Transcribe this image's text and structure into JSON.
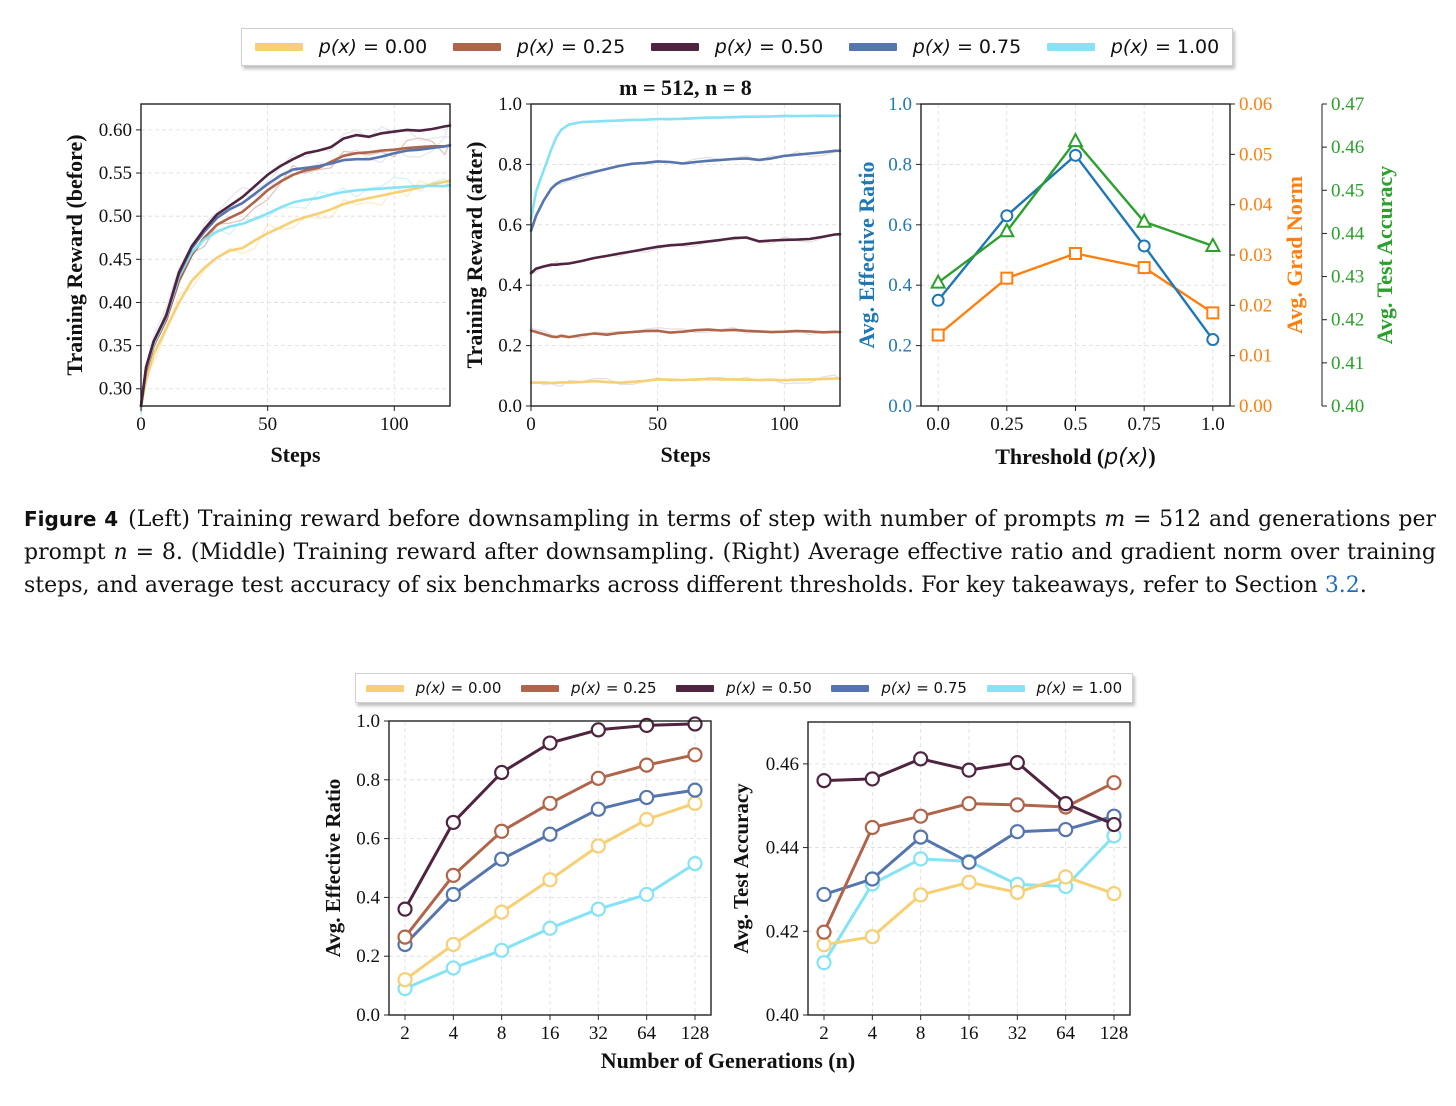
{
  "legend": {
    "entries": [
      {
        "label_prefix": "p(x)",
        "label_value": " = 0.00",
        "color": "#f7cf74"
      },
      {
        "label_prefix": "p(x)",
        "label_value": " = 0.25",
        "color": "#b0654a"
      },
      {
        "label_prefix": "p(x)",
        "label_value": " = 0.50",
        "color": "#4e2440"
      },
      {
        "label_prefix": "p(x)",
        "label_value": " = 0.75",
        "color": "#5575ae"
      },
      {
        "label_prefix": "p(x)",
        "label_value": " = 1.00",
        "color": "#86e2f5"
      }
    ]
  },
  "caption": {
    "figure_label": "Figure 4",
    "part1": "(Left) Training reward before downsampling in terms of step with number of prompts ",
    "m_var": "m",
    "part2": " = 512 and generations per prompt ",
    "n_var": "n",
    "part3": " = 8. (Middle) Training reward after downsampling. (Right) Average effective ratio and gradient norm over training steps, and average test accuracy of six benchmarks across different thresholds. For key takeaways, refer to Section ",
    "section_ref": "3.2",
    "part4": "."
  },
  "chart_data": [
    {
      "id": "training-reward-before",
      "type": "line",
      "title": "",
      "xlabel": "Steps",
      "ylabel": "Training Reward (before)",
      "xlim": [
        0,
        122
      ],
      "ylim": [
        0.28,
        0.63
      ],
      "xticks": [
        0,
        50,
        100
      ],
      "yticks": [
        0.3,
        0.35,
        0.4,
        0.45,
        0.5,
        0.55,
        0.6
      ],
      "ytick_labels": [
        "0.30",
        "0.35",
        "0.40",
        "0.45",
        "0.50",
        "0.55",
        "0.60"
      ],
      "grid": true,
      "x": [
        0,
        2,
        5,
        10,
        15,
        20,
        25,
        30,
        35,
        40,
        45,
        50,
        55,
        60,
        65,
        70,
        75,
        80,
        85,
        90,
        95,
        100,
        105,
        110,
        115,
        120,
        122
      ],
      "series": [
        {
          "name": "p(x) = 0.00",
          "values": [
            0.28,
            0.31,
            0.34,
            0.37,
            0.4,
            0.425,
            0.44,
            0.452,
            0.46,
            0.463,
            0.472,
            0.48,
            0.487,
            0.494,
            0.499,
            0.503,
            0.508,
            0.514,
            0.518,
            0.521,
            0.524,
            0.527,
            0.53,
            0.533,
            0.537,
            0.54,
            0.541
          ]
        },
        {
          "name": "p(x) = 0.25",
          "values": [
            0.28,
            0.32,
            0.35,
            0.38,
            0.425,
            0.455,
            0.475,
            0.49,
            0.498,
            0.505,
            0.517,
            0.53,
            0.54,
            0.548,
            0.553,
            0.556,
            0.563,
            0.57,
            0.573,
            0.574,
            0.576,
            0.577,
            0.579,
            0.58,
            0.581,
            0.581,
            0.582
          ]
        },
        {
          "name": "p(x) = 0.50",
          "values": [
            0.28,
            0.325,
            0.355,
            0.385,
            0.435,
            0.465,
            0.485,
            0.502,
            0.512,
            0.522,
            0.535,
            0.548,
            0.558,
            0.566,
            0.573,
            0.576,
            0.58,
            0.59,
            0.594,
            0.592,
            0.596,
            0.598,
            0.6,
            0.599,
            0.601,
            0.604,
            0.605
          ]
        },
        {
          "name": "p(x) = 0.75",
          "values": [
            0.28,
            0.325,
            0.355,
            0.385,
            0.433,
            0.463,
            0.482,
            0.498,
            0.508,
            0.515,
            0.526,
            0.537,
            0.547,
            0.554,
            0.556,
            0.558,
            0.561,
            0.565,
            0.566,
            0.566,
            0.569,
            0.573,
            0.576,
            0.577,
            0.579,
            0.581,
            0.582
          ]
        },
        {
          "name": "p(x) = 1.00",
          "values": [
            0.28,
            0.323,
            0.352,
            0.383,
            0.43,
            0.458,
            0.473,
            0.482,
            0.488,
            0.491,
            0.497,
            0.503,
            0.51,
            0.516,
            0.519,
            0.521,
            0.525,
            0.528,
            0.53,
            0.531,
            0.532,
            0.533,
            0.534,
            0.535,
            0.535,
            0.535,
            0.536
          ]
        }
      ]
    },
    {
      "id": "training-reward-after",
      "type": "line",
      "title": "m = 512, n = 8",
      "xlabel": "Steps",
      "ylabel": "Training Reward (after)",
      "xlim": [
        0,
        122
      ],
      "ylim": [
        0.0,
        1.0
      ],
      "xticks": [
        0,
        50,
        100
      ],
      "yticks": [
        0.0,
        0.2,
        0.4,
        0.6,
        0.8,
        1.0
      ],
      "ytick_labels": [
        "0.0",
        "0.2",
        "0.4",
        "0.6",
        "0.8",
        "1.0"
      ],
      "grid": true,
      "x": [
        0,
        2,
        5,
        8,
        10,
        12,
        15,
        20,
        25,
        30,
        35,
        40,
        45,
        50,
        55,
        60,
        65,
        70,
        75,
        80,
        85,
        90,
        95,
        100,
        105,
        110,
        115,
        120,
        122
      ],
      "series": [
        {
          "name": "p(x) = 0.00",
          "values": [
            0.078,
            0.077,
            0.078,
            0.076,
            0.077,
            0.078,
            0.078,
            0.079,
            0.082,
            0.079,
            0.077,
            0.08,
            0.083,
            0.088,
            0.087,
            0.086,
            0.088,
            0.089,
            0.088,
            0.088,
            0.087,
            0.086,
            0.087,
            0.085,
            0.087,
            0.088,
            0.089,
            0.091,
            0.091
          ]
        },
        {
          "name": "p(x) = 0.25",
          "values": [
            0.25,
            0.245,
            0.238,
            0.23,
            0.228,
            0.232,
            0.228,
            0.235,
            0.24,
            0.236,
            0.242,
            0.245,
            0.248,
            0.249,
            0.243,
            0.246,
            0.251,
            0.253,
            0.25,
            0.252,
            0.249,
            0.247,
            0.245,
            0.246,
            0.248,
            0.247,
            0.244,
            0.245,
            0.245
          ]
        },
        {
          "name": "p(x) = 0.50",
          "values": [
            0.44,
            0.455,
            0.462,
            0.468,
            0.468,
            0.47,
            0.472,
            0.48,
            0.49,
            0.497,
            0.505,
            0.512,
            0.52,
            0.527,
            0.532,
            0.535,
            0.54,
            0.545,
            0.55,
            0.556,
            0.558,
            0.545,
            0.548,
            0.55,
            0.551,
            0.553,
            0.56,
            0.568,
            0.569
          ]
        },
        {
          "name": "p(x) = 0.75",
          "values": [
            0.58,
            0.63,
            0.68,
            0.72,
            0.735,
            0.745,
            0.752,
            0.765,
            0.775,
            0.785,
            0.795,
            0.802,
            0.805,
            0.81,
            0.808,
            0.803,
            0.808,
            0.812,
            0.815,
            0.818,
            0.82,
            0.815,
            0.82,
            0.828,
            0.832,
            0.836,
            0.84,
            0.845,
            0.845
          ]
        },
        {
          "name": "p(x) = 1.00",
          "values": [
            0.62,
            0.71,
            0.78,
            0.85,
            0.89,
            0.915,
            0.932,
            0.94,
            0.942,
            0.944,
            0.945,
            0.947,
            0.948,
            0.95,
            0.95,
            0.951,
            0.953,
            0.955,
            0.955,
            0.957,
            0.958,
            0.958,
            0.959,
            0.96,
            0.96,
            0.961,
            0.961,
            0.961,
            0.961
          ]
        }
      ]
    },
    {
      "id": "threshold-metrics",
      "type": "line",
      "title": "",
      "xlabel": "Threshold (p(x))",
      "x": [
        0.0,
        0.25,
        0.5,
        0.75,
        1.0
      ],
      "xtick_labels": [
        "0.0",
        "0.25",
        "0.5",
        "0.75",
        "1.0"
      ],
      "grid": true,
      "axes": [
        {
          "name": "Avg. Effective Ratio",
          "color": "#1f77b4",
          "ylim": [
            0.0,
            1.0
          ],
          "yticks": [
            0.0,
            0.2,
            0.4,
            0.6,
            0.8,
            1.0
          ],
          "ytick_labels": [
            "0.0",
            "0.2",
            "0.4",
            "0.6",
            "0.8",
            "1.0"
          ],
          "marker": "circle",
          "values": [
            0.35,
            0.63,
            0.83,
            0.53,
            0.22
          ]
        },
        {
          "name": "Avg. Grad Norm",
          "color": "#ff7f0e",
          "ylim": [
            0.0,
            0.06
          ],
          "yticks": [
            0.0,
            0.01,
            0.02,
            0.03,
            0.04,
            0.05,
            0.06
          ],
          "ytick_labels": [
            "0.00",
            "0.01",
            "0.02",
            "0.03",
            "0.04",
            "0.05",
            "0.06"
          ],
          "marker": "square",
          "values": [
            0.0141,
            0.0254,
            0.0303,
            0.0275,
            0.0185
          ]
        },
        {
          "name": "Avg. Test Accuracy",
          "color": "#2ca02c",
          "ylim": [
            0.4,
            0.47
          ],
          "yticks": [
            0.4,
            0.41,
            0.42,
            0.43,
            0.44,
            0.45,
            0.46,
            0.47
          ],
          "ytick_labels": [
            "0.40",
            "0.41",
            "0.42",
            "0.43",
            "0.44",
            "0.45",
            "0.46",
            "0.47"
          ],
          "marker": "triangle",
          "values": [
            0.4286,
            0.4405,
            0.4614,
            0.4427,
            0.4371
          ]
        }
      ]
    },
    {
      "id": "effective-ratio-vs-generations",
      "type": "line",
      "title": "",
      "xlabel": "Number of Generations (n)",
      "ylabel": "Avg. Effective Ratio",
      "categories": [
        "2",
        "4",
        "8",
        "16",
        "32",
        "64",
        "128"
      ],
      "ylim": [
        0.0,
        1.0
      ],
      "yticks": [
        0.0,
        0.2,
        0.4,
        0.6,
        0.8,
        1.0
      ],
      "ytick_labels": [
        "0.0",
        "0.2",
        "0.4",
        "0.6",
        "0.8",
        "1.0"
      ],
      "grid": true,
      "series": [
        {
          "name": "p(x) = 0.00",
          "values": [
            0.12,
            0.24,
            0.35,
            0.46,
            0.575,
            0.665,
            0.72
          ]
        },
        {
          "name": "p(x) = 0.25",
          "values": [
            0.265,
            0.475,
            0.625,
            0.72,
            0.805,
            0.85,
            0.885
          ]
        },
        {
          "name": "p(x) = 0.50",
          "values": [
            0.36,
            0.655,
            0.825,
            0.925,
            0.97,
            0.985,
            0.99
          ]
        },
        {
          "name": "p(x) = 0.75",
          "values": [
            0.24,
            0.41,
            0.53,
            0.615,
            0.7,
            0.74,
            0.765
          ]
        },
        {
          "name": "p(x) = 1.00",
          "values": [
            0.09,
            0.16,
            0.22,
            0.295,
            0.36,
            0.41,
            0.515
          ]
        }
      ]
    },
    {
      "id": "test-accuracy-vs-generations",
      "type": "line",
      "title": "",
      "xlabel": "Number of Generations (n)",
      "ylabel": "Avg. Test Accuracy",
      "categories": [
        "2",
        "4",
        "8",
        "16",
        "32",
        "64",
        "128"
      ],
      "ylim": [
        0.4,
        0.47
      ],
      "yticks": [
        0.4,
        0.42,
        0.44,
        0.46
      ],
      "ytick_labels": [
        "0.40",
        "0.42",
        "0.44",
        "0.46"
      ],
      "grid": true,
      "series": [
        {
          "name": "p(x) = 0.00",
          "values": [
            0.4168,
            0.4187,
            0.4287,
            0.4317,
            0.4293,
            0.433,
            0.429
          ]
        },
        {
          "name": "p(x) = 0.25",
          "values": [
            0.4198,
            0.4448,
            0.4475,
            0.4505,
            0.4502,
            0.4497,
            0.4555
          ]
        },
        {
          "name": "p(x) = 0.50",
          "values": [
            0.456,
            0.4564,
            0.4612,
            0.4585,
            0.4603,
            0.4505,
            0.4455
          ]
        },
        {
          "name": "p(x) = 0.75",
          "values": [
            0.4288,
            0.4325,
            0.4425,
            0.4365,
            0.4438,
            0.4443,
            0.4475
          ]
        },
        {
          "name": "p(x) = 1.00",
          "values": [
            0.4125,
            0.4313,
            0.4373,
            0.4367,
            0.4312,
            0.4307,
            0.4428
          ]
        }
      ]
    }
  ]
}
